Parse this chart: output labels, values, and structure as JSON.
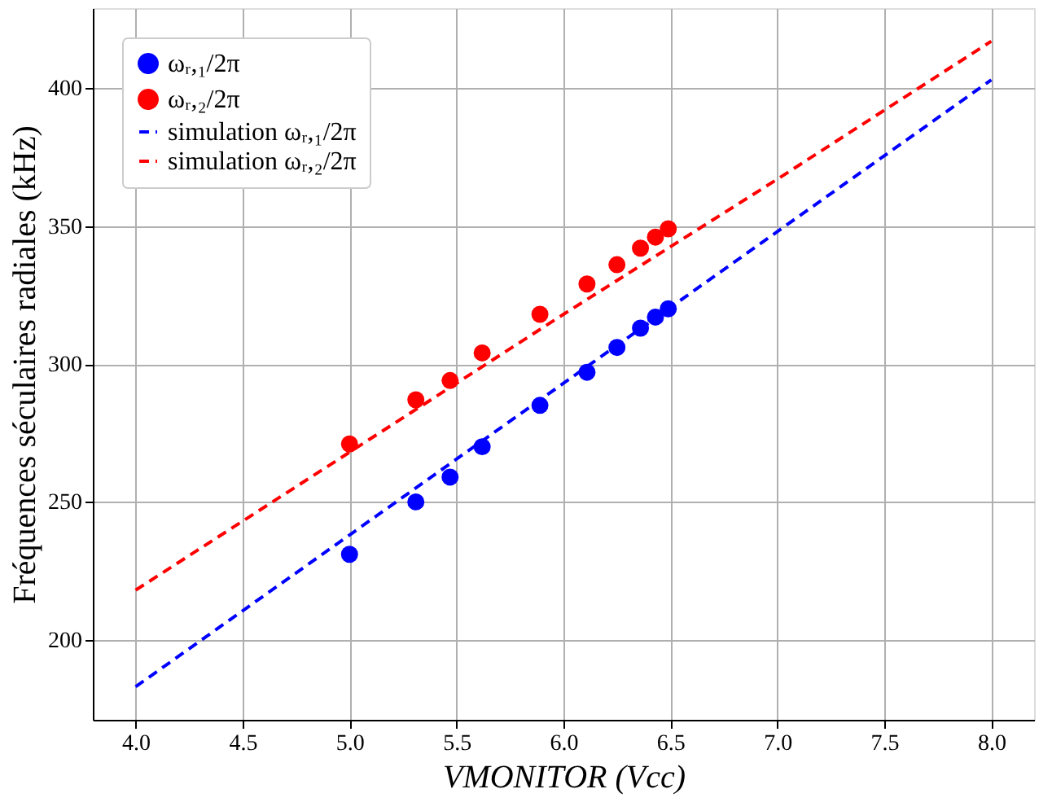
{
  "chart_data": {
    "type": "scatter",
    "xlabel": "VMONITOR (Vcc)",
    "ylabel": "Fréquences séculaires radiales (kHz)",
    "xlim": [
      3.8,
      8.2
    ],
    "xticks": [
      {
        "value": 4.0,
        "label": "4.0"
      },
      {
        "value": 4.5,
        "label": "4.5"
      },
      {
        "value": 5.0,
        "label": "5.0"
      },
      {
        "value": 5.5,
        "label": "5.5"
      },
      {
        "value": 6.0,
        "label": "6.0"
      },
      {
        "value": 6.5,
        "label": "6.5"
      },
      {
        "value": 7.0,
        "label": "7.0"
      },
      {
        "value": 7.5,
        "label": "7.5"
      },
      {
        "value": 8.0,
        "label": "8.0"
      }
    ],
    "ylim": [
      171,
      429
    ],
    "yticks": [
      200,
      250,
      300,
      350,
      400
    ],
    "grid": true,
    "legend": "top left",
    "series": [
      {
        "name": "ωᵣ,₁/2π",
        "marker": "circle",
        "color": "#0000ff",
        "x": [
          5.0,
          5.31,
          5.47,
          5.62,
          5.89,
          6.11,
          6.25,
          6.36,
          6.43,
          6.49
        ],
        "values": [
          231,
          250,
          259,
          270,
          285,
          297,
          306,
          313,
          317,
          320
        ]
      },
      {
        "name": "ωᵣ,₂/2π",
        "marker": "circle",
        "color": "#ff0000",
        "x": [
          5.0,
          5.31,
          5.47,
          5.62,
          5.89,
          6.11,
          6.25,
          6.36,
          6.43,
          6.49
        ],
        "values": [
          271,
          287,
          294,
          304,
          318,
          329,
          336,
          342,
          346,
          349
        ]
      },
      {
        "name": "simulation ωᵣ,₁/2π",
        "type": "line",
        "line_style": "dashed",
        "color": "#0000ff",
        "x": [
          4.0,
          5.0,
          6.0,
          7.0,
          8.0
        ],
        "values": [
          183,
          238,
          293,
          348,
          403
        ]
      },
      {
        "name": "simulation ωᵣ,₂/2π",
        "type": "line",
        "line_style": "dashed",
        "color": "#ff0000",
        "x": [
          4.0,
          5.0,
          6.0,
          7.0,
          8.0
        ],
        "values": [
          218,
          268,
          318,
          367,
          417
        ]
      }
    ]
  }
}
